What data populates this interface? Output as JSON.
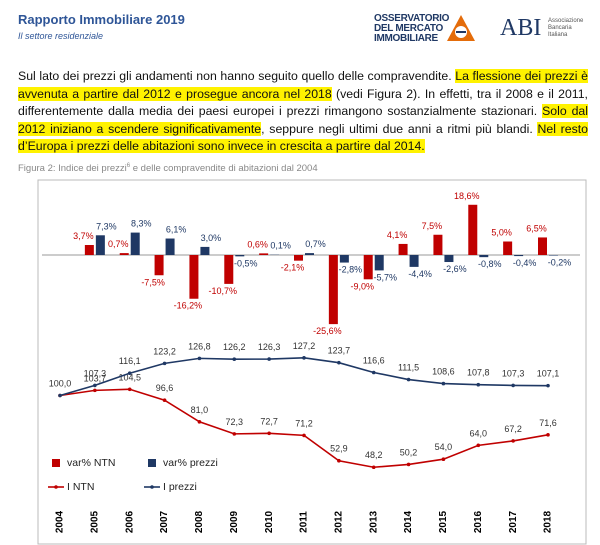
{
  "header": {
    "title": "Rapporto Immobiliare 2019",
    "subtitle": "Il settore residenziale",
    "logo_omi": [
      "OSSERVATORIO",
      "DEL MERCATO",
      "IMMOBILIARE"
    ],
    "logo_abi": "ABI",
    "logo_abi_sub": [
      "Associazione",
      "Bancaria",
      "Italiana"
    ]
  },
  "paragraph": [
    {
      "text": "Sul lato dei prezzi gli andamenti non hanno seguito quello delle compravendite. ",
      "highlight": false
    },
    {
      "text": "La flessione dei prezzi è avvenuta a partire dal 2012 e prosegue ancora nel 2018",
      "highlight": true
    },
    {
      "text": " (vedi Figura 2). In effetti, tra il 2008 e il 2011, differentemente dalla media dei paesi europei i prezzi rimangono sostanzialmente stazionari. ",
      "highlight": false
    },
    {
      "text": "Solo dal 2012 iniziano a scendere significativamente",
      "highlight": true
    },
    {
      "text": ", seppure negli ultimi due anni a ritmi più blandi. ",
      "highlight": false
    },
    {
      "text": "Nel resto d’Europa i prezzi delle abitazioni sono invece in crescita a partire dal 2014.",
      "highlight": true
    }
  ],
  "caption": {
    "before": "Figura 2: Indice dei prezzi",
    "sup": "6",
    "after": " e delle compravendite di abitazioni dal 2004"
  },
  "chart_data": {
    "type": "bar",
    "categories": [
      "2004",
      "2005",
      "2006",
      "2007",
      "2008",
      "2009",
      "2010",
      "2011",
      "2012",
      "2013",
      "2014",
      "2015",
      "2016",
      "2017",
      "2018"
    ],
    "series": [
      {
        "name": "var% NTN",
        "type": "bar",
        "color": "#c00000",
        "values": [
          null,
          3.7,
          0.7,
          -7.5,
          -16.2,
          -10.7,
          0.6,
          -2.1,
          -25.6,
          -9.0,
          4.1,
          7.5,
          18.6,
          5.0,
          6.5
        ],
        "value_labels": [
          null,
          "3,7%",
          "0,7%",
          "-7,5%",
          "-16,2%",
          "-10,7%",
          "0,6%",
          "-2,1%",
          "-25,6%",
          "-9,0%",
          "4,1%",
          "7,5%",
          "18,6%",
          "5,0%",
          "6,5%"
        ]
      },
      {
        "name": "var% prezzi",
        "type": "bar",
        "color": "#1f3864",
        "values": [
          null,
          7.3,
          8.3,
          6.1,
          3.0,
          -0.5,
          0.1,
          0.7,
          -2.8,
          -5.7,
          -4.4,
          -2.6,
          -0.8,
          -0.4,
          -0.2
        ],
        "value_labels": [
          null,
          "7,3%",
          "8,3%",
          "6,1%",
          "3,0%",
          "-0,5%",
          "0,1%",
          "0,7%",
          "-2,8%",
          "-5,7%",
          "-4,4%",
          "-2,6%",
          "-0,8%",
          "-0,4%",
          "-0,2%"
        ]
      },
      {
        "name": "I NTN",
        "type": "line",
        "color": "#c00000",
        "values": [
          100.0,
          103.7,
          104.5,
          96.6,
          81.0,
          72.3,
          72.7,
          71.2,
          52.9,
          48.2,
          50.2,
          54.0,
          64.0,
          67.2,
          71.6
        ],
        "value_labels": [
          null,
          "103,7",
          "104,5",
          "96,6",
          "81,0",
          "72,3",
          "72,7",
          "71,2",
          "52,9",
          "48,2",
          "50,2",
          "54,0",
          "64,0",
          "67,2",
          "71,6"
        ]
      },
      {
        "name": "I prezzi",
        "type": "line",
        "color": "#1f3864",
        "values": [
          100.0,
          107.3,
          116.1,
          123.2,
          126.8,
          126.2,
          126.3,
          127.2,
          123.7,
          116.6,
          111.5,
          108.6,
          107.8,
          107.3,
          107.1
        ],
        "value_labels": [
          "100,0",
          "107,3",
          "116,1",
          "123,2",
          "126,8",
          "126,2",
          "126,3",
          "127,2",
          "123,7",
          "116,6",
          "111,5",
          "108,6",
          "107,8",
          "107,3",
          "107,1"
        ]
      }
    ]
  }
}
